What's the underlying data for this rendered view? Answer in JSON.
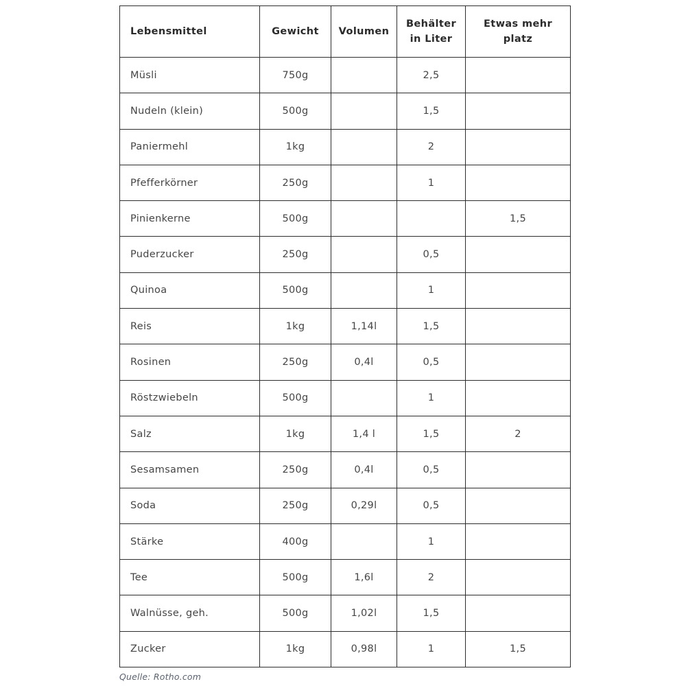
{
  "chart_data": {
    "type": "table",
    "columns": [
      "Lebensmittel",
      "Gewicht",
      "Volumen",
      "Behälter in Liter",
      "Etwas mehr platz"
    ],
    "rows": [
      [
        "Müsli",
        "750g",
        "",
        "2,5",
        ""
      ],
      [
        "Nudeln (klein)",
        "500g",
        "",
        "1,5",
        ""
      ],
      [
        "Paniermehl",
        "1kg",
        "",
        "2",
        ""
      ],
      [
        "Pfefferkörner",
        "250g",
        "",
        "1",
        ""
      ],
      [
        "Pinienkerne",
        "500g",
        "",
        "",
        "1,5"
      ],
      [
        "Puderzucker",
        "250g",
        "",
        "0,5",
        ""
      ],
      [
        "Quinoa",
        "500g",
        "",
        "1",
        ""
      ],
      [
        "Reis",
        "1kg",
        "1,14l",
        "1,5",
        ""
      ],
      [
        "Rosinen",
        "250g",
        "0,4l",
        "0,5",
        ""
      ],
      [
        "Röstzwiebeln",
        "500g",
        "",
        "1",
        ""
      ],
      [
        "Salz",
        "1kg",
        "1,4 l",
        "1,5",
        "2"
      ],
      [
        "Sesamsamen",
        "250g",
        "0,4l",
        "0,5",
        ""
      ],
      [
        "Soda",
        "250g",
        "0,29l",
        "0,5",
        ""
      ],
      [
        "Stärke",
        "400g",
        "",
        "1",
        ""
      ],
      [
        "Tee",
        "500g",
        "1,6l",
        "2",
        ""
      ],
      [
        "Walnüsse, geh.",
        "500g",
        "1,02l",
        "1,5",
        ""
      ],
      [
        "Zucker",
        "1kg",
        "0,98l",
        "1",
        "1,5"
      ]
    ],
    "caption": "Quelle: Rotho.com",
    "layout": {
      "grid": "all-borders",
      "header_position": "top",
      "column_alignment": [
        "left",
        "center",
        "center",
        "center",
        "center"
      ]
    },
    "colors": {
      "background": "#ffffff",
      "border": "#2d2d2d",
      "header_text": "#2b2b2b",
      "cell_text": "#454545",
      "caption_text": "#5a6270"
    }
  }
}
